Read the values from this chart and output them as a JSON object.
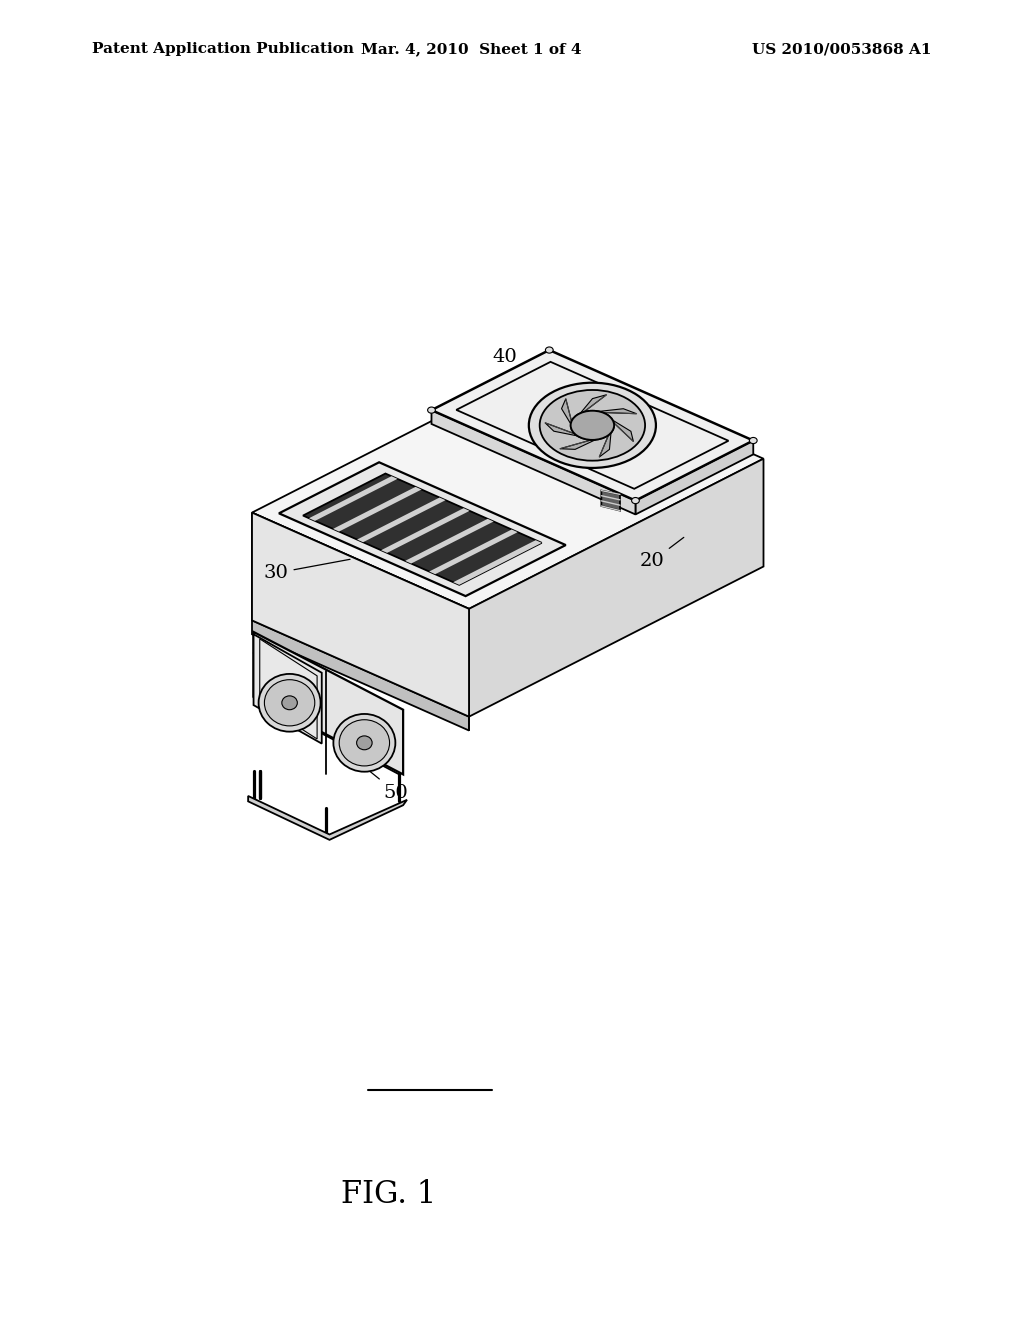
{
  "background_color": "#ffffff",
  "header_left": "Patent Application Publication",
  "header_center": "Mar. 4, 2010  Sheet 1 of 4",
  "header_right": "US 2010/0053868 A1",
  "header_fontsize": 11,
  "figure_label": "FIG. 1",
  "figure_label_fontsize": 22,
  "label_fontsize": 14,
  "line_color": "#000000",
  "line_width": 1.3,
  "fill_top": "#f5f5f5",
  "fill_front": "#ebebeb",
  "fill_right": "#d8d8d8",
  "fill_dark": "#c0c0c0"
}
